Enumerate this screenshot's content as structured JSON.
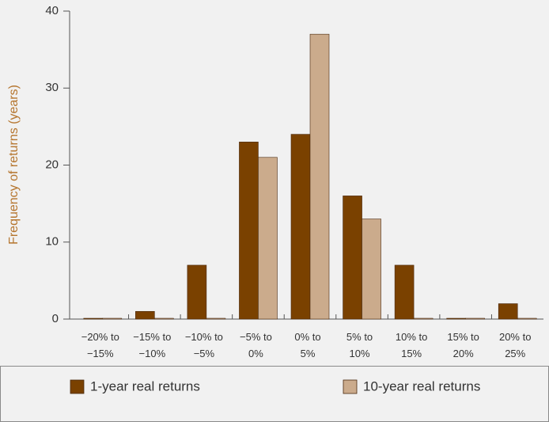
{
  "chart_data": {
    "type": "bar",
    "y_label": "Frequency of returns (years)",
    "categories": [
      "−20% to −15%",
      "−15% to −10%",
      "−10% to −5%",
      "−5% to 0%",
      "0% to 5%",
      "5% to 10%",
      "10% to 15%",
      "15% to 20%",
      "20% to 25%"
    ],
    "series": [
      {
        "name": "1-year real returns",
        "color": "#7a4100",
        "values": [
          0,
          1,
          7,
          23,
          24,
          16,
          7,
          0,
          2
        ]
      },
      {
        "name": "10-year real returns",
        "color": "#cbab8c",
        "values": [
          0,
          0,
          0,
          21,
          37,
          13,
          0,
          0,
          0
        ]
      }
    ],
    "ylim": [
      0,
      40
    ],
    "yticks": [
      0,
      10,
      20,
      30,
      40
    ],
    "y_label_color": "#b5752e",
    "legend": "bottom"
  }
}
